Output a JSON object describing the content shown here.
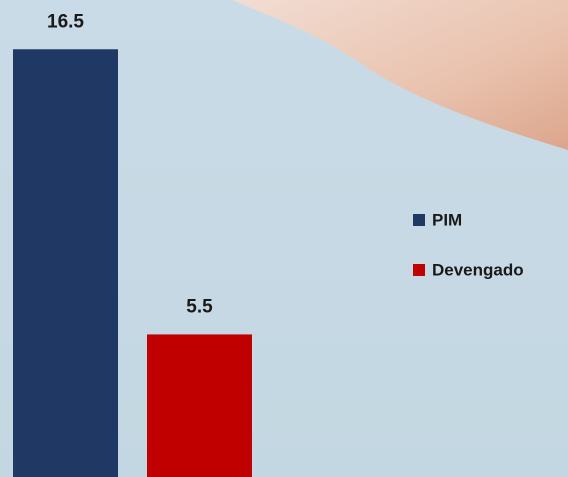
{
  "chart_data": {
    "type": "bar",
    "categories": [
      null
    ],
    "series": [
      {
        "name": "PIM",
        "color": "#1f3864",
        "values": [
          16.5
        ]
      },
      {
        "name": "Devengado",
        "color": "#c00000",
        "values": [
          5.5
        ]
      }
    ],
    "ylim": [
      0,
      18.4
    ],
    "grid": false,
    "legend": "right"
  }
}
